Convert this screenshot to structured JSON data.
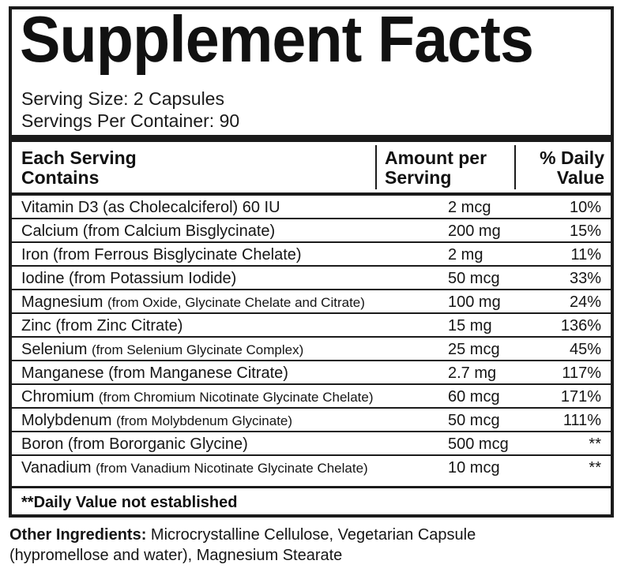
{
  "title": "Supplement Facts",
  "serving": {
    "size": "Serving Size: 2 Capsules",
    "per_container": "Servings Per Container: 90"
  },
  "headers": {
    "each_line1": "Each Serving",
    "each_line2": "Contains",
    "amount_line1": "Amount per",
    "amount_line2": "Serving",
    "dv_line1": "% Daily",
    "dv_line2": "Value"
  },
  "nutrients": [
    {
      "name": "Vitamin D3 (as Cholecalciferol) 60 IU",
      "source": "",
      "amount": "2 mcg",
      "dv": "10%"
    },
    {
      "name": "Calcium (from Calcium Bisglycinate)",
      "source": "",
      "amount": "200 mg",
      "dv": "15%"
    },
    {
      "name": "Iron (from Ferrous Bisglycinate Chelate)",
      "source": "",
      "amount": "2 mg",
      "dv": "11%"
    },
    {
      "name": "Iodine (from Potassium Iodide)",
      "source": "",
      "amount": "50 mcg",
      "dv": "33%"
    },
    {
      "name": "Magnesium",
      "source": "(from Oxide, Glycinate Chelate and Citrate)",
      "amount": "100 mg",
      "dv": "24%"
    },
    {
      "name": "Zinc (from Zinc Citrate)",
      "source": "",
      "amount": "15 mg",
      "dv": "136%"
    },
    {
      "name": "Selenium",
      "source": "(from Selenium Glycinate Complex)",
      "amount": "25 mcg",
      "dv": "45%"
    },
    {
      "name": "Manganese (from Manganese Citrate)",
      "source": "",
      "amount": "2.7 mg",
      "dv": "117%"
    },
    {
      "name": "Chromium",
      "source": "(from Chromium Nicotinate Glycinate Chelate)",
      "amount": "60 mcg",
      "dv": "171%"
    },
    {
      "name": "Molybdenum",
      "source": "(from Molybdenum Glycinate)",
      "amount": "50 mcg",
      "dv": "111%"
    },
    {
      "name": "Boron (from Bororganic Glycine)",
      "source": "",
      "amount": "500 mcg",
      "dv": "**"
    },
    {
      "name": "Vanadium",
      "source": "(from Vanadium Nicotinate Glycinate Chelate)",
      "amount": "10 mcg",
      "dv": "**"
    }
  ],
  "footnote": "**Daily Value not established",
  "other_ingredients": {
    "label": "Other Ingredients:",
    "text": "Microcrystalline Cellulose, Vegetarian Capsule (hypromellose and water), Magnesium Stearate"
  }
}
